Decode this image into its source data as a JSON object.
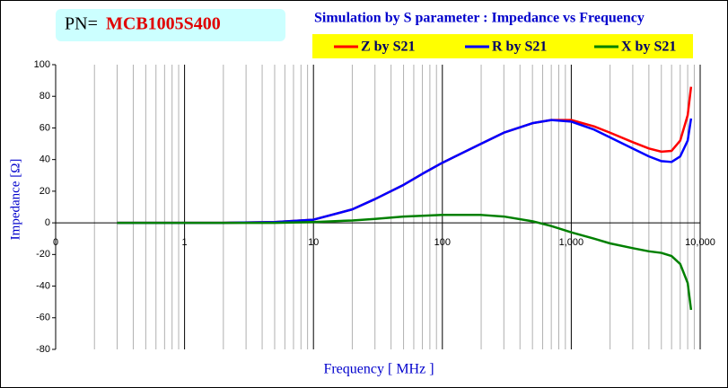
{
  "chart_data": {
    "type": "line",
    "pn_prefix": "PN=",
    "pn": "MCB1005S400",
    "title": "Simulation by S parameter : Impedance vs Frequency",
    "x_label": "Frequency [ MHz ]",
    "y_label": "Impedance [Ω]",
    "x_log": true,
    "xlim": [
      0.1,
      10000
    ],
    "xticks": [
      {
        "value": 0.1,
        "label": "0"
      },
      1,
      10,
      100,
      {
        "value": 1000,
        "label": "1,000"
      },
      {
        "value": 10000,
        "label": "10,000"
      }
    ],
    "ylim": [
      -80,
      100
    ],
    "yticks": [
      -80,
      -60,
      -40,
      -20,
      0,
      20,
      40,
      60,
      80,
      100
    ],
    "x": [
      0.3,
      0.5,
      1,
      2,
      5,
      10,
      20,
      30,
      50,
      70,
      100,
      200,
      300,
      500,
      700,
      1000,
      1500,
      2000,
      3000,
      4000,
      5000,
      6000,
      7000,
      8000,
      8500
    ],
    "series": [
      {
        "name": "Z by S21",
        "color": "#ff0000",
        "values": [
          0,
          0,
          0,
          0,
          0.5,
          2,
          8.5,
          15,
          24,
          31,
          38,
          50,
          57,
          63,
          65,
          65,
          61,
          57,
          51,
          47,
          45,
          45.5,
          52,
          68,
          86
        ]
      },
      {
        "name": "R by S21",
        "color": "#0000ff",
        "values": [
          0,
          0,
          0,
          0,
          0.5,
          2,
          8.5,
          15,
          24,
          31,
          38,
          50,
          57,
          63,
          65,
          64,
          59,
          54,
          47,
          42,
          39,
          38.5,
          42,
          52,
          66
        ]
      },
      {
        "name": "X by S21",
        "color": "#008000",
        "values": [
          0,
          0,
          0,
          0,
          0,
          0.5,
          1.5,
          2.5,
          4,
          4.5,
          5,
          5,
          4,
          1,
          -2,
          -6,
          -10,
          -13,
          -16,
          -18,
          -19,
          -21,
          -26,
          -38,
          -55
        ]
      }
    ]
  }
}
